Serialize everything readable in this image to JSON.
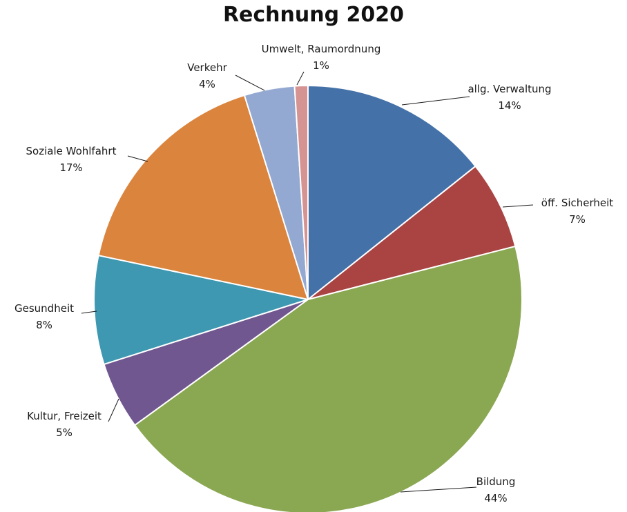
{
  "chart_data": {
    "type": "pie",
    "title": "Rechnung 2020",
    "start_angle_deg": 0,
    "direction": "clockwise",
    "slices": [
      {
        "name": "allg. Verwaltung",
        "label": "allg. Verwaltung",
        "percent_label": "14%",
        "value": 14.3,
        "color": "#4471A8"
      },
      {
        "name": "öff. Sicherheit",
        "label": "öff. Sicherheit",
        "percent_label": "7%",
        "value": 6.7,
        "color": "#AA4443"
      },
      {
        "name": "Bildung",
        "label": "Bildung",
        "percent_label": "44%",
        "value": 44.0,
        "color": "#8AA752"
      },
      {
        "name": "Kultur, Freizeit",
        "label": "Kultur, Freizeit",
        "percent_label": "5%",
        "value": 5.1,
        "color": "#71578F"
      },
      {
        "name": "Gesundheit",
        "label": "Gesundheit",
        "percent_label": "8%",
        "value": 8.2,
        "color": "#3E98B1"
      },
      {
        "name": "Soziale Wohlfahrt",
        "label": "Soziale Wohlfahrt",
        "percent_label": "17%",
        "value": 16.9,
        "color": "#DB843D"
      },
      {
        "name": "Verkehr",
        "label": "Verkehr",
        "percent_label": "4%",
        "value": 3.8,
        "color": "#94A9D1"
      },
      {
        "name": "Umwelt, Raumordnung",
        "label": "Umwelt, Raumordnung",
        "percent_label": "1%",
        "value": 1.0,
        "color": "#D59392"
      }
    ]
  }
}
